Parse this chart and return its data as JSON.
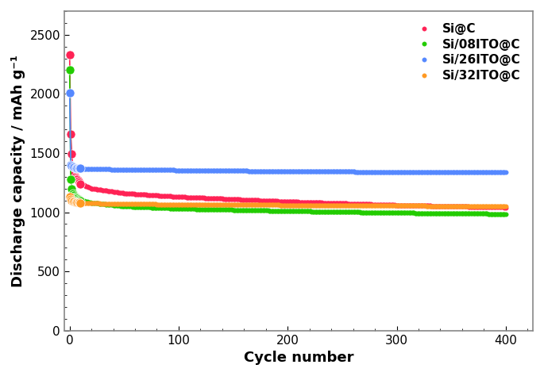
{
  "xlabel": "Cycle number",
  "ylabel": "Discharge capacity / mAh g⁻¹",
  "xlim": [
    -5,
    425
  ],
  "ylim": [
    0,
    2700
  ],
  "yticks": [
    0,
    500,
    1000,
    1500,
    2000,
    2500
  ],
  "xticks": [
    0,
    100,
    200,
    300,
    400
  ],
  "series": [
    {
      "label": "Si@C",
      "color": "#FF2255",
      "c0": 2330,
      "c1": 1660,
      "c2": 1490,
      "c3": 1380,
      "c5": 1300,
      "c10": 1240,
      "c20": 1200,
      "c50": 1160,
      "c100": 1130,
      "c200": 1090,
      "c300": 1060,
      "c400": 1040
    },
    {
      "label": "Si/08ITO@C",
      "color": "#22CC00",
      "c0": 2200,
      "c1": 1280,
      "c2": 1200,
      "c3": 1160,
      "c5": 1130,
      "c10": 1100,
      "c20": 1080,
      "c50": 1050,
      "c100": 1030,
      "c200": 1010,
      "c300": 995,
      "c400": 985
    },
    {
      "label": "Si/26ITO@C",
      "color": "#5588FF",
      "c0": 2010,
      "c1": 1400,
      "c2": 1390,
      "c3": 1385,
      "c5": 1375,
      "c10": 1370,
      "c20": 1365,
      "c50": 1360,
      "c100": 1355,
      "c200": 1345,
      "c300": 1340,
      "c400": 1340
    },
    {
      "label": "Si/32ITO@C",
      "color": "#FF9922",
      "c0": 1130,
      "c1": 1110,
      "c2": 1100,
      "c3": 1090,
      "c5": 1085,
      "c10": 1080,
      "c20": 1075,
      "c50": 1070,
      "c100": 1065,
      "c200": 1060,
      "c300": 1055,
      "c400": 1050
    }
  ],
  "legend_fontsize": 11,
  "axis_label_fontsize": 13,
  "tick_fontsize": 11,
  "marker": "o",
  "markersize_large": 8,
  "markersize_small": 4,
  "linewidth": 1.2,
  "background_color": "#ffffff",
  "plot_bg_color": "#ffffff",
  "spine_color": "#888888"
}
